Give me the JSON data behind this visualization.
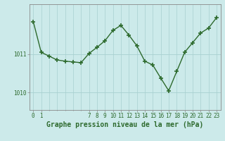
{
  "x": [
    0,
    1,
    2,
    3,
    4,
    5,
    6,
    7,
    8,
    9,
    10,
    11,
    12,
    13,
    14,
    15,
    16,
    17,
    18,
    19,
    20,
    21,
    22,
    23
  ],
  "y": [
    1011.85,
    1011.05,
    1010.95,
    1010.85,
    1010.82,
    1010.8,
    1010.78,
    1011.02,
    1011.18,
    1011.35,
    1011.62,
    1011.75,
    1011.5,
    1011.22,
    1010.82,
    1010.72,
    1010.38,
    1010.05,
    1010.55,
    1011.05,
    1011.3,
    1011.55,
    1011.68,
    1011.95
  ],
  "line_color": "#2d6a2d",
  "marker_color": "#2d6a2d",
  "bg_color": "#cceaea",
  "grid_color": "#a8d0d0",
  "spine_color": "#888888",
  "title": "Graphe pression niveau de la mer (hPa)",
  "ylabel_left_ticks": [
    1010,
    1011
  ],
  "ylim": [
    1009.55,
    1012.3
  ],
  "xlim": [
    -0.5,
    23.5
  ],
  "xtick_labels_show": [
    0,
    1,
    7,
    8,
    9,
    10,
    11,
    12,
    13,
    14,
    15,
    16,
    17,
    18,
    19,
    20,
    21,
    22,
    23
  ],
  "title_fontsize": 7,
  "tick_fontsize": 5.5,
  "marker_size": 4,
  "linewidth": 1.0
}
